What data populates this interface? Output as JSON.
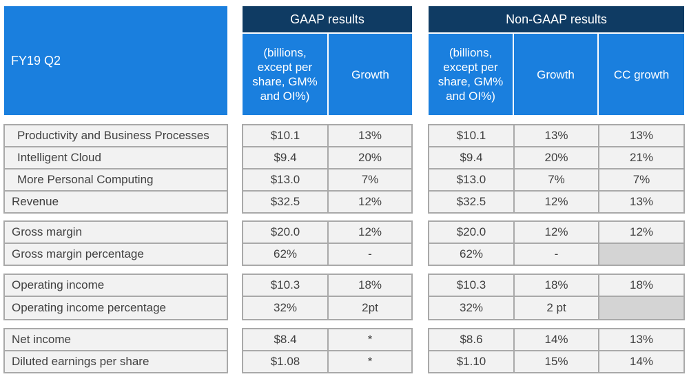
{
  "header": {
    "period": "FY19 Q2",
    "gaap_title": "GAAP results",
    "nongaap_title": "Non-GAAP results",
    "units_label": "(billions, except per share, GM% and OI%)",
    "growth_label": "Growth",
    "cc_growth_label": "CC growth"
  },
  "rows": [
    {
      "label": "Productivity and Business Processes",
      "gaap_value": "$10.1",
      "gaap_growth": "13%",
      "ng_value": "$10.1",
      "ng_growth": "13%",
      "ng_cc": "13%"
    },
    {
      "label": "Intelligent Cloud",
      "gaap_value": "$9.4",
      "gaap_growth": "20%",
      "ng_value": "$9.4",
      "ng_growth": "20%",
      "ng_cc": "21%"
    },
    {
      "label": "More Personal Computing",
      "gaap_value": "$13.0",
      "gaap_growth": "7%",
      "ng_value": "$13.0",
      "ng_growth": "7%",
      "ng_cc": "7%"
    },
    {
      "label": "Revenue",
      "gaap_value": "$32.5",
      "gaap_growth": "12%",
      "ng_value": "$32.5",
      "ng_growth": "12%",
      "ng_cc": "13%"
    },
    {
      "label": "Gross margin",
      "gaap_value": "$20.0",
      "gaap_growth": "12%",
      "ng_value": "$20.0",
      "ng_growth": "12%",
      "ng_cc": "12%"
    },
    {
      "label": "Gross margin percentage",
      "gaap_value": "62%",
      "gaap_growth": "-",
      "ng_value": "62%",
      "ng_growth": "-",
      "ng_cc": ""
    },
    {
      "label": "Operating income",
      "gaap_value": "$10.3",
      "gaap_growth": "18%",
      "ng_value": "$10.3",
      "ng_growth": "18%",
      "ng_cc": "18%"
    },
    {
      "label": "Operating income percentage",
      "gaap_value": "32%",
      "gaap_growth": "2pt",
      "ng_value": "32%",
      "ng_growth": "2 pt",
      "ng_cc": ""
    },
    {
      "label": "Net income",
      "gaap_value": "$8.4",
      "gaap_growth": "*",
      "ng_value": "$8.6",
      "ng_growth": "14%",
      "ng_cc": "13%"
    },
    {
      "label": "Diluted earnings per share",
      "gaap_value": "$1.08",
      "gaap_growth": "*",
      "ng_value": "$1.10",
      "ng_growth": "15%",
      "ng_cc": "14%"
    }
  ],
  "colors": {
    "header_dark": "#0f3b63",
    "header_blue": "#1a7fde",
    "cell_bg": "#f2f2f2",
    "empty_cell_bg": "#d4d4d4",
    "border": "#a9a9a9",
    "text": "#404040"
  },
  "chart_data": {
    "type": "table",
    "title": "FY19 Q2",
    "column_groups": [
      "GAAP results",
      "Non-GAAP results"
    ],
    "columns": [
      "(billions, except per share, GM% and OI%)",
      "Growth",
      "(billions, except per share, GM% and OI%)",
      "Growth",
      "CC growth"
    ],
    "row_labels": [
      "Productivity and Business Processes",
      "Intelligent Cloud",
      "More Personal Computing",
      "Revenue",
      "Gross margin",
      "Gross margin percentage",
      "Operating income",
      "Operating income percentage",
      "Net income",
      "Diluted earnings per share"
    ],
    "cells": [
      [
        "$10.1",
        "13%",
        "$10.1",
        "13%",
        "13%"
      ],
      [
        "$9.4",
        "20%",
        "$9.4",
        "20%",
        "21%"
      ],
      [
        "$13.0",
        "7%",
        "$13.0",
        "7%",
        "7%"
      ],
      [
        "$32.5",
        "12%",
        "$32.5",
        "12%",
        "13%"
      ],
      [
        "$20.0",
        "12%",
        "$20.0",
        "12%",
        "12%"
      ],
      [
        "62%",
        "-",
        "62%",
        "-",
        ""
      ],
      [
        "$10.3",
        "18%",
        "$10.3",
        "18%",
        "18%"
      ],
      [
        "32%",
        "2pt",
        "32%",
        "2 pt",
        ""
      ],
      [
        "$8.4",
        "*",
        "$8.6",
        "14%",
        "13%"
      ],
      [
        "$1.08",
        "*",
        "$1.10",
        "15%",
        "14%"
      ]
    ]
  }
}
